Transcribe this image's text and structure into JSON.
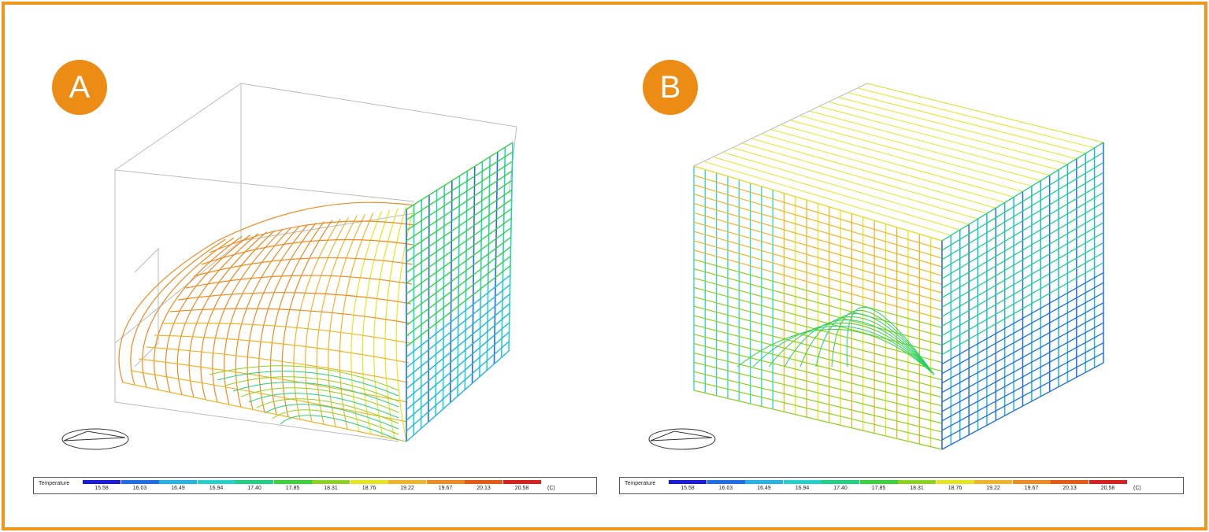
{
  "panels": [
    {
      "id": "A",
      "label": "A"
    },
    {
      "id": "B",
      "label": "B"
    }
  ],
  "legend": {
    "title": "Temperature",
    "unit": "(C)",
    "ticks": [
      "15.58",
      "16.03",
      "16.49",
      "16.94",
      "17.40",
      "17.85",
      "18.31",
      "18.76",
      "19.22",
      "19.67",
      "20.13",
      "20.58"
    ],
    "colors": [
      "#1a1adc",
      "#1e6ee8",
      "#22b4e6",
      "#22d2c8",
      "#1ed282",
      "#38d23c",
      "#8cd21e",
      "#e6e61e",
      "#f0b428",
      "#f08a1e",
      "#e65a14",
      "#dc1e1e"
    ]
  },
  "style": {
    "frame_color": "#f0961a",
    "badge_color": "#ec8c14"
  }
}
